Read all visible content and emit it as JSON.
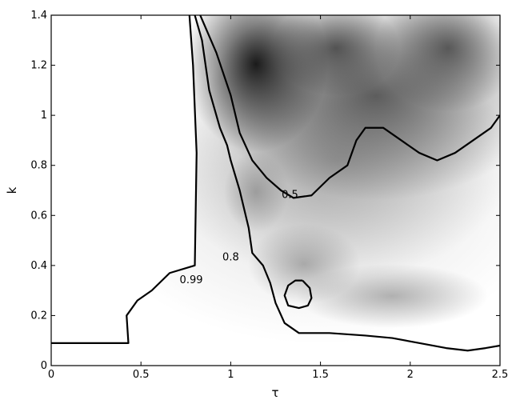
{
  "chart_data": {
    "type": "heatmap",
    "title": "",
    "xlabel": "τ",
    "ylabel": "k",
    "xlim": [
      0,
      2.5
    ],
    "ylim": [
      0,
      1.4
    ],
    "grid": false,
    "colormap": [
      "#ffffff",
      "#111111"
    ],
    "xticks": [
      {
        "value": 0,
        "label": "0"
      },
      {
        "value": 0.5,
        "label": "0.5"
      },
      {
        "value": 1,
        "label": "1"
      },
      {
        "value": 1.5,
        "label": "1.5"
      },
      {
        "value": 2,
        "label": "2"
      },
      {
        "value": 2.5,
        "label": "2.5"
      }
    ],
    "yticks": [
      {
        "value": 0,
        "label": "0"
      },
      {
        "value": 0.2,
        "label": "0.2"
      },
      {
        "value": 0.4,
        "label": "0.4"
      },
      {
        "value": 0.6,
        "label": "0.6"
      },
      {
        "value": 0.8,
        "label": "0.8"
      },
      {
        "value": 1,
        "label": "1"
      },
      {
        "value": 1.2,
        "label": "1.2"
      },
      {
        "value": 1.4,
        "label": "1.4"
      }
    ],
    "contour_labels": [
      {
        "text": "0.99",
        "x": 0.78,
        "y": 0.33
      },
      {
        "text": "0.8",
        "x": 1.0,
        "y": 0.42
      },
      {
        "text": "0.5",
        "x": 1.33,
        "y": 0.67
      }
    ],
    "contours": [
      {
        "level": "0.99",
        "points": [
          [
            0,
            0.09
          ],
          [
            0.43,
            0.09
          ],
          [
            0.42,
            0.2
          ],
          [
            0.48,
            0.26
          ],
          [
            0.56,
            0.3
          ],
          [
            0.66,
            0.37
          ],
          [
            0.8,
            0.4
          ],
          [
            0.81,
            0.85
          ],
          [
            0.79,
            1.2
          ],
          [
            0.77,
            1.4
          ]
        ]
      },
      {
        "level": "0.8",
        "points": [
          [
            0.8,
            1.4
          ],
          [
            0.84,
            1.3
          ],
          [
            0.88,
            1.1
          ],
          [
            0.94,
            0.95
          ],
          [
            0.98,
            0.88
          ],
          [
            1.0,
            0.82
          ],
          [
            1.05,
            0.7
          ],
          [
            1.1,
            0.55
          ],
          [
            1.12,
            0.45
          ],
          [
            1.18,
            0.4
          ],
          [
            1.22,
            0.33
          ],
          [
            1.25,
            0.25
          ],
          [
            1.3,
            0.17
          ],
          [
            1.38,
            0.13
          ],
          [
            1.55,
            0.13
          ],
          [
            1.75,
            0.12
          ],
          [
            1.9,
            0.11
          ],
          [
            2.05,
            0.09
          ],
          [
            2.2,
            0.07
          ],
          [
            2.32,
            0.06
          ],
          [
            2.42,
            0.07
          ],
          [
            2.5,
            0.08
          ]
        ]
      },
      {
        "level": "0.5",
        "points": [
          [
            0.83,
            1.4
          ],
          [
            0.92,
            1.25
          ],
          [
            1.0,
            1.08
          ],
          [
            1.05,
            0.93
          ],
          [
            1.12,
            0.82
          ],
          [
            1.2,
            0.75
          ],
          [
            1.28,
            0.7
          ],
          [
            1.35,
            0.67
          ],
          [
            1.45,
            0.68
          ],
          [
            1.55,
            0.75
          ],
          [
            1.65,
            0.8
          ],
          [
            1.7,
            0.9
          ],
          [
            1.75,
            0.95
          ],
          [
            1.85,
            0.95
          ],
          [
            1.95,
            0.9
          ],
          [
            2.05,
            0.85
          ],
          [
            2.15,
            0.82
          ],
          [
            2.25,
            0.85
          ],
          [
            2.35,
            0.9
          ],
          [
            2.45,
            0.95
          ],
          [
            2.5,
            1.0
          ]
        ]
      },
      {
        "level": "0.5",
        "points": [
          [
            1.4,
            0.34
          ],
          [
            1.44,
            0.31
          ],
          [
            1.45,
            0.27
          ],
          [
            1.43,
            0.24
          ],
          [
            1.38,
            0.23
          ],
          [
            1.32,
            0.24
          ],
          [
            1.3,
            0.28
          ],
          [
            1.32,
            0.32
          ],
          [
            1.36,
            0.34
          ],
          [
            1.4,
            0.34
          ]
        ]
      }
    ]
  }
}
